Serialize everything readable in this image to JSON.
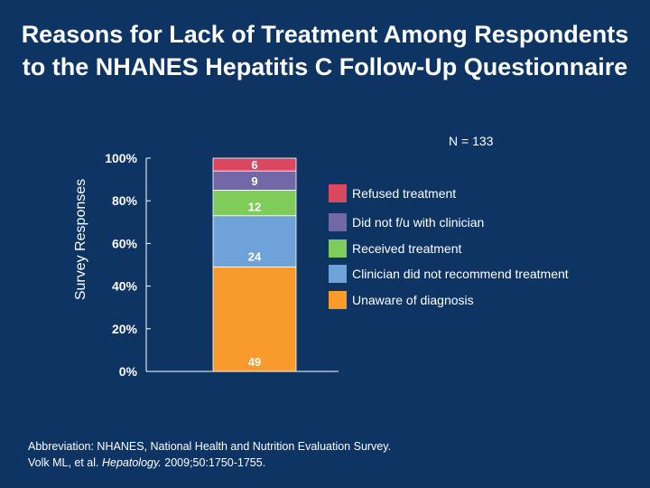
{
  "slide": {
    "title": "Reasons for Lack of Treatment Among Respondents to the NHANES Hepatitis C Follow-Up Questionnaire",
    "n_label": "N = 133",
    "footnote_line1": "Abbreviation: NHANES, National Health and Nutrition Evaluation Survey.",
    "footnote_line2_prefix": "Volk ML, et al. ",
    "footnote_journal": "Hepatology.",
    "footnote_line2_suffix": " 2009;50:1750-1755."
  },
  "chart_data": {
    "type": "bar",
    "stacked": true,
    "categories": [
      ""
    ],
    "ylabel": "Survey Responses",
    "ylim": [
      0,
      100
    ],
    "yticks": [
      "0%",
      "20%",
      "40%",
      "60%",
      "80%",
      "100%"
    ],
    "grid": false,
    "legend_position": "right",
    "series": [
      {
        "name": "Unaware of diagnosis",
        "values": [
          49
        ],
        "color": "#f99a2c"
      },
      {
        "name": "Clinician did not recommend treatment",
        "values": [
          24
        ],
        "color": "#6fa2d8"
      },
      {
        "name": "Received treatment",
        "values": [
          12
        ],
        "color": "#7fcc5a"
      },
      {
        "name": "Did not f/u with clinician",
        "values": [
          9
        ],
        "color": "#7467a8"
      },
      {
        "name": "Refused treatment",
        "values": [
          6
        ],
        "color": "#d9485f"
      }
    ],
    "legend_order": [
      "Refused treatment",
      "Did not f/u with clinician",
      "Received treatment",
      "Clinician did not recommend treatment",
      "Unaware of diagnosis"
    ]
  }
}
